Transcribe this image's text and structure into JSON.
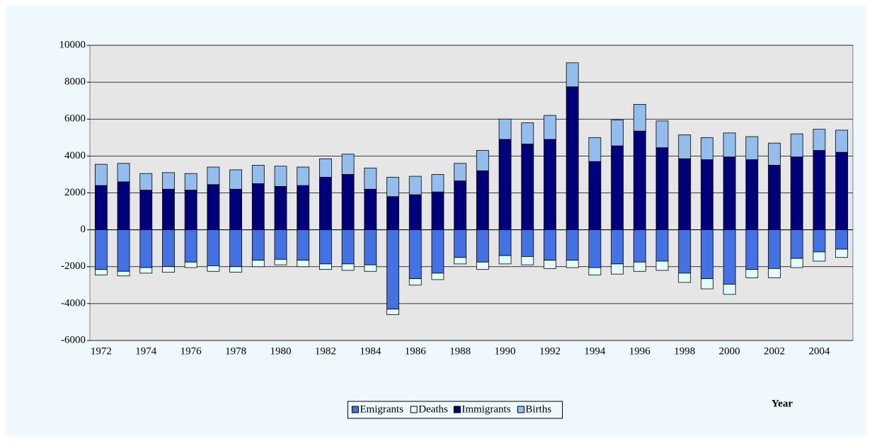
{
  "chart_data": {
    "type": "bar",
    "stacked": true,
    "x_label": "Year",
    "categories": [
      "1972",
      null,
      "1974",
      null,
      "1976",
      null,
      "1978",
      null,
      "1980",
      null,
      "1982",
      null,
      "1984",
      null,
      "1986",
      null,
      "1988",
      null,
      "1990",
      null,
      "1992",
      null,
      "1994",
      null,
      "1996",
      null,
      "1998",
      null,
      "2000",
      null,
      "2002",
      null,
      "2004",
      null
    ],
    "series": [
      {
        "name": "Emigrants",
        "color": "#4472e4",
        "values": [
          -2150,
          -2250,
          -2050,
          -2000,
          -1750,
          -1950,
          -2000,
          -1650,
          -1600,
          -1650,
          -1850,
          -1850,
          -1900,
          -4300,
          -2650,
          -2350,
          -1500,
          -1750,
          -1400,
          -1450,
          -1650,
          -1650,
          -2050,
          -1850,
          -1750,
          -1700,
          -2350,
          -2650,
          -2950,
          -2150,
          -2100,
          -1550,
          -1200,
          -1050
        ]
      },
      {
        "name": "Deaths",
        "color": "#e2fdfd",
        "values": [
          -300,
          -250,
          -300,
          -300,
          -300,
          -300,
          -300,
          -350,
          -300,
          -350,
          -300,
          -350,
          -350,
          -300,
          -350,
          -350,
          -350,
          -400,
          -450,
          -450,
          -450,
          -400,
          -400,
          -550,
          -500,
          -500,
          -500,
          -550,
          -550,
          -450,
          -500,
          -500,
          -500,
          -450
        ]
      },
      {
        "name": "Immigrants",
        "color": "#00007a",
        "values": [
          2400,
          2600,
          2150,
          2200,
          2150,
          2450,
          2200,
          2500,
          2350,
          2400,
          2850,
          3000,
          2200,
          1800,
          1900,
          2050,
          2650,
          3200,
          4900,
          4650,
          4900,
          7750,
          3700,
          4550,
          5350,
          4450,
          3850,
          3800,
          3950,
          3800,
          3500,
          3950,
          4300,
          4200
        ]
      },
      {
        "name": "Births",
        "color": "#94bdee",
        "values": [
          1150,
          1000,
          900,
          900,
          900,
          950,
          1050,
          1000,
          1100,
          1000,
          1000,
          1100,
          1150,
          1050,
          1000,
          950,
          950,
          1100,
          1100,
          1150,
          1300,
          1300,
          1300,
          1400,
          1450,
          1450,
          1300,
          1200,
          1300,
          1250,
          1200,
          1250,
          1150,
          1200
        ]
      }
    ],
    "ylim": [
      -6000,
      10000
    ],
    "yticks": [
      -6000,
      -4000,
      -2000,
      0,
      2000,
      4000,
      6000,
      8000,
      10000
    ],
    "grid": true
  }
}
